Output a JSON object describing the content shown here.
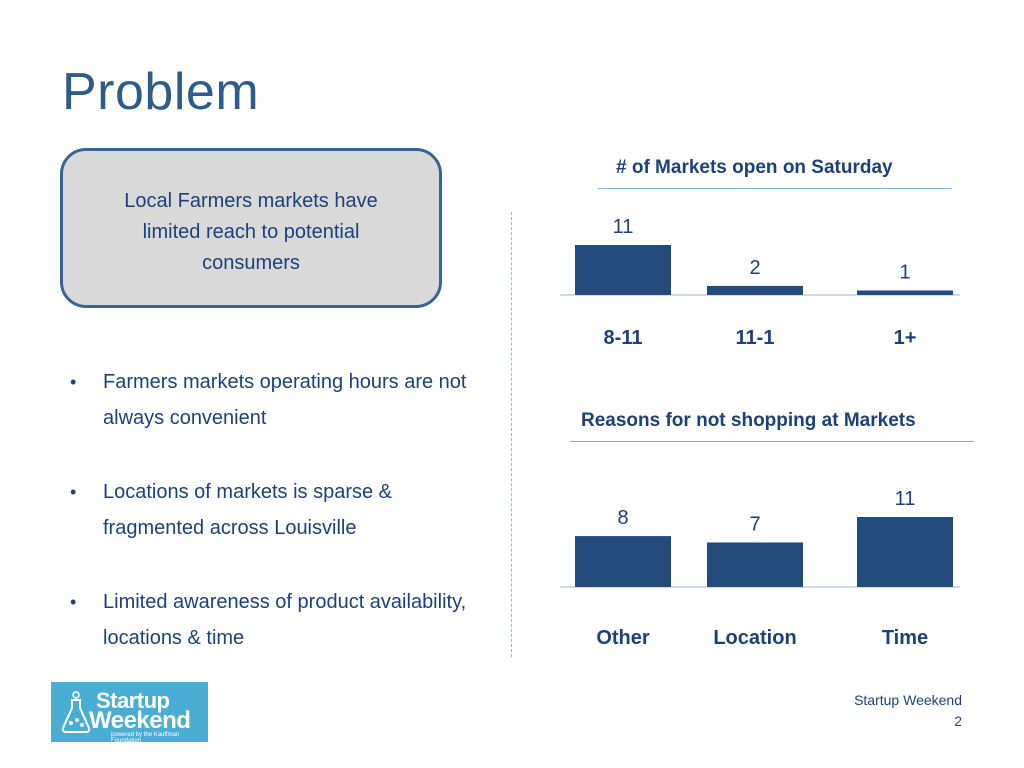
{
  "slide": {
    "title": "Problem",
    "callout": "Local Farmers markets have limited reach to potential consumers",
    "bullets": [
      "Farmers markets operating hours are not always convenient",
      "Locations of markets is sparse & fragmented across Louisville",
      "Limited awareness of product availability, locations & time"
    ],
    "footer": {
      "line1": "Startup Weekend",
      "page_number": "2"
    },
    "logo": {
      "line1": "Startup",
      "line2": "Weekend",
      "tagline": "powered by the Kauffman Foundation"
    }
  },
  "colors": {
    "title": "#2e5c8a",
    "bar": "#234b7c",
    "text": "#1f3f78",
    "callout_bg": "#d9d9d9",
    "logo_bg": "#49add4"
  },
  "chart_data": [
    {
      "type": "bar",
      "title": "# of Markets open on Saturday",
      "categories": [
        "8-11",
        "11-1",
        "1+"
      ],
      "values": [
        11,
        2,
        1
      ]
    },
    {
      "type": "bar",
      "title": "Reasons for not shopping at Markets",
      "categories": [
        "Other",
        "Location",
        "Time"
      ],
      "values": [
        8,
        7,
        11
      ]
    }
  ]
}
